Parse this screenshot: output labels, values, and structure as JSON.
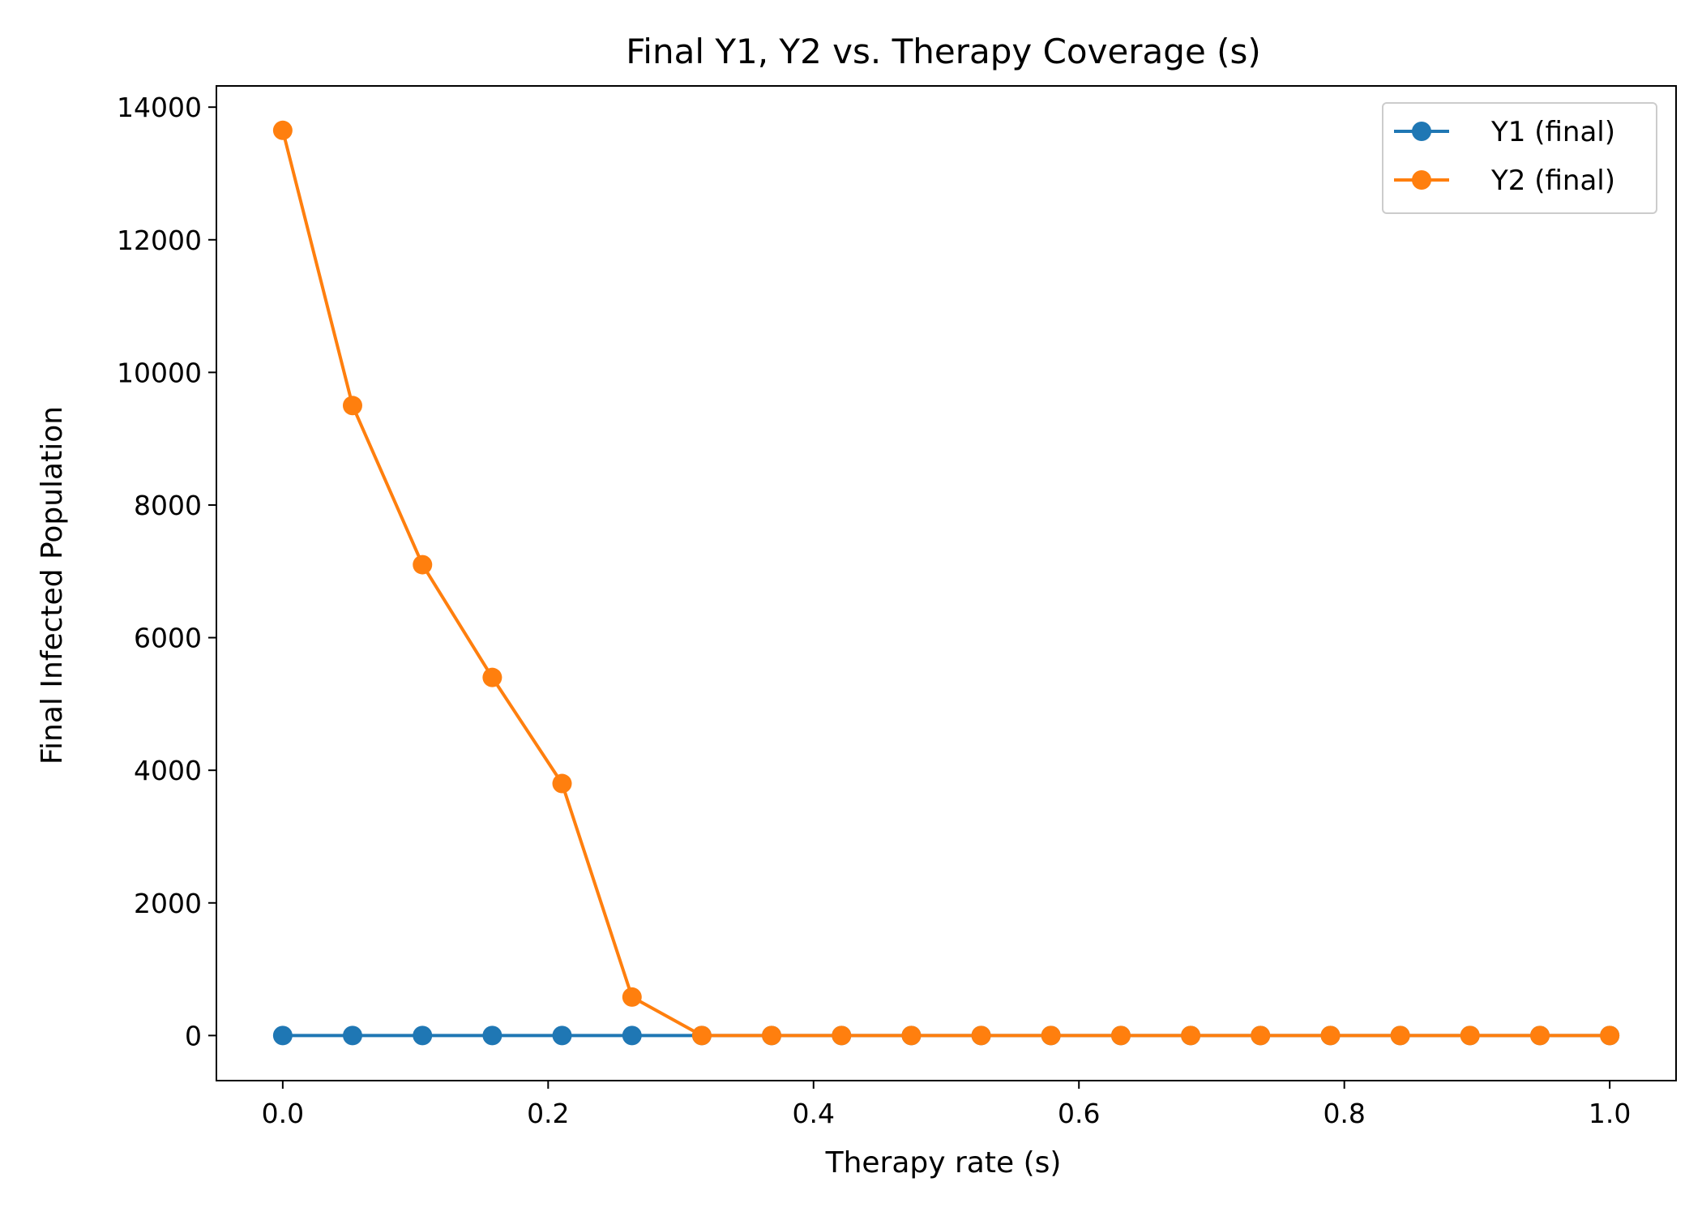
{
  "chart_data": {
    "type": "line",
    "title": "Final Y1, Y2 vs. Therapy Coverage (s)",
    "xlabel": "Therapy rate (s)",
    "ylabel": "Final Infected Population",
    "xlim": [
      -0.05,
      1.05
    ],
    "ylim": [
      -680,
      14320
    ],
    "x_ticks": [
      0.0,
      0.2,
      0.4,
      0.6,
      0.8,
      1.0
    ],
    "x_tick_labels": [
      "0.0",
      "0.2",
      "0.4",
      "0.6",
      "0.8",
      "1.0"
    ],
    "y_ticks": [
      0,
      2000,
      4000,
      6000,
      8000,
      10000,
      12000,
      14000
    ],
    "y_tick_labels": [
      "0",
      "2000",
      "4000",
      "6000",
      "8000",
      "10000",
      "12000",
      "14000"
    ],
    "grid": false,
    "legend_position": "top-right",
    "x": [
      0.0,
      0.0526,
      0.1053,
      0.1579,
      0.2105,
      0.2632,
      0.3158,
      0.3684,
      0.4211,
      0.4737,
      0.5263,
      0.5789,
      0.6316,
      0.6842,
      0.7368,
      0.7895,
      0.8421,
      0.8947,
      0.9474,
      1.0
    ],
    "series": [
      {
        "name": "Y1 (final)",
        "color": "#1f77b4",
        "values": [
          0,
          0,
          0,
          0,
          0,
          0,
          0,
          0,
          0,
          0,
          0,
          0,
          0,
          0,
          0,
          0,
          0,
          0,
          0,
          0
        ]
      },
      {
        "name": "Y2 (final)",
        "color": "#ff7f0e",
        "values": [
          13650,
          9500,
          7100,
          5400,
          3800,
          580,
          0,
          0,
          0,
          0,
          0,
          0,
          0,
          0,
          0,
          0,
          0,
          0,
          0,
          0
        ]
      }
    ]
  }
}
